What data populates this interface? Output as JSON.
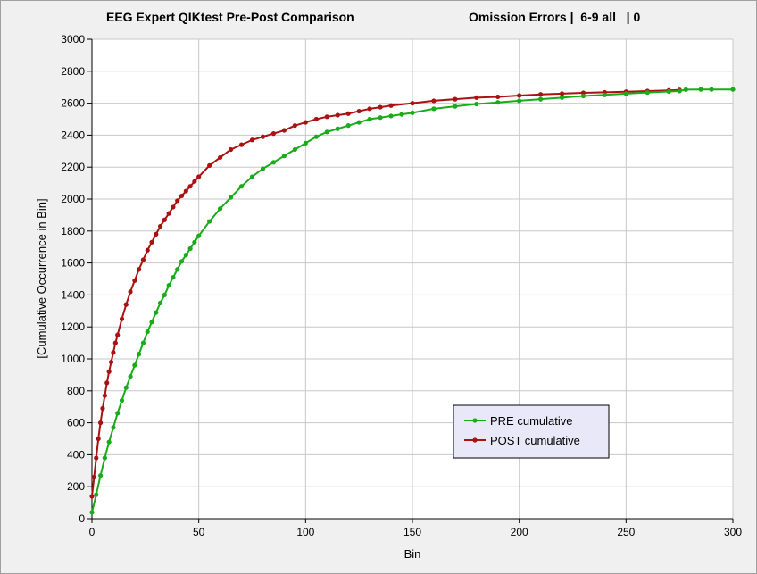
{
  "window": {
    "title": "EEG Expert QIKtest Pre-Post Comparison",
    "subtitle": "Omission Errors |  6-9 all   | 0"
  },
  "chart_data": {
    "type": "line",
    "xlabel": "Bin",
    "ylabel": "[Cumulative Occurrence in Bin]",
    "xlim": [
      0,
      300
    ],
    "ylim": [
      0,
      3000
    ],
    "xticks": [
      0,
      50,
      100,
      150,
      200,
      250,
      300
    ],
    "yticks": [
      0,
      200,
      400,
      600,
      800,
      1000,
      1200,
      1400,
      1600,
      1800,
      2000,
      2200,
      2400,
      2600,
      2800,
      3000
    ],
    "grid": true,
    "legend_position": "lower-right",
    "series": [
      {
        "name": "PRE cumulative",
        "color": "#1aab1a",
        "x": [
          0,
          2,
          4,
          6,
          8,
          10,
          12,
          14,
          16,
          18,
          20,
          22,
          24,
          26,
          28,
          30,
          32,
          34,
          36,
          38,
          40,
          42,
          44,
          46,
          48,
          50,
          55,
          60,
          65,
          70,
          75,
          80,
          85,
          90,
          95,
          100,
          105,
          110,
          115,
          120,
          125,
          130,
          135,
          140,
          145,
          150,
          160,
          170,
          180,
          190,
          200,
          210,
          220,
          230,
          240,
          250,
          260,
          270,
          275,
          278,
          285,
          290,
          300
        ],
        "y": [
          40,
          150,
          270,
          380,
          480,
          570,
          660,
          740,
          820,
          890,
          960,
          1030,
          1100,
          1170,
          1230,
          1290,
          1350,
          1400,
          1460,
          1510,
          1560,
          1610,
          1650,
          1690,
          1730,
          1770,
          1860,
          1940,
          2010,
          2080,
          2140,
          2190,
          2230,
          2270,
          2310,
          2350,
          2390,
          2420,
          2440,
          2460,
          2480,
          2500,
          2510,
          2520,
          2530,
          2540,
          2565,
          2580,
          2595,
          2605,
          2615,
          2625,
          2635,
          2645,
          2652,
          2660,
          2667,
          2673,
          2676,
          2685,
          2686,
          2686,
          2686
        ]
      },
      {
        "name": "POST cumulative",
        "color": "#aa1111",
        "x": [
          0,
          1,
          2,
          3,
          4,
          5,
          6,
          7,
          8,
          9,
          10,
          11,
          12,
          14,
          16,
          18,
          20,
          22,
          24,
          26,
          28,
          30,
          32,
          34,
          36,
          38,
          40,
          42,
          44,
          46,
          48,
          50,
          55,
          60,
          65,
          70,
          75,
          80,
          85,
          90,
          95,
          100,
          105,
          110,
          115,
          120,
          125,
          130,
          135,
          140,
          150,
          160,
          170,
          180,
          190,
          200,
          210,
          220,
          230,
          240,
          250,
          260,
          270,
          275
        ],
        "y": [
          140,
          260,
          380,
          500,
          600,
          690,
          770,
          850,
          920,
          980,
          1040,
          1100,
          1150,
          1250,
          1340,
          1420,
          1490,
          1560,
          1620,
          1680,
          1730,
          1780,
          1830,
          1870,
          1910,
          1950,
          1990,
          2020,
          2050,
          2080,
          2110,
          2140,
          2210,
          2260,
          2310,
          2340,
          2370,
          2390,
          2410,
          2430,
          2460,
          2480,
          2500,
          2515,
          2525,
          2535,
          2550,
          2565,
          2575,
          2585,
          2600,
          2615,
          2625,
          2635,
          2640,
          2648,
          2655,
          2660,
          2665,
          2668,
          2672,
          2676,
          2680,
          2683
        ]
      }
    ]
  }
}
